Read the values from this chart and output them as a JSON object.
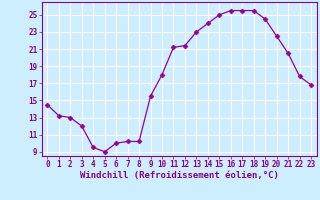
{
  "x": [
    0,
    1,
    2,
    3,
    4,
    5,
    6,
    7,
    8,
    9,
    10,
    11,
    12,
    13,
    14,
    15,
    16,
    17,
    18,
    19,
    20,
    21,
    22,
    23
  ],
  "y": [
    14.5,
    13.2,
    13.0,
    12.0,
    9.5,
    9.0,
    10.0,
    10.2,
    10.2,
    15.5,
    18.0,
    21.2,
    21.4,
    23.0,
    24.0,
    25.0,
    25.5,
    25.5,
    25.5,
    24.5,
    22.5,
    20.5,
    17.8,
    16.8
  ],
  "line_color": "#990099",
  "marker": "D",
  "marker_size": 2.5,
  "xlabel": "Windchill (Refroidissement éolien,°C)",
  "xlabel_fontsize": 6.5,
  "bg_color": "#cceeff",
  "grid_color": "#ffffff",
  "tick_color": "#880088",
  "xlim": [
    -0.5,
    23.5
  ],
  "ylim": [
    8.5,
    26.5
  ],
  "yticks": [
    9,
    11,
    13,
    15,
    17,
    19,
    21,
    23,
    25
  ],
  "xticks": [
    0,
    1,
    2,
    3,
    4,
    5,
    6,
    7,
    8,
    9,
    10,
    11,
    12,
    13,
    14,
    15,
    16,
    17,
    18,
    19,
    20,
    21,
    22,
    23
  ],
  "tick_labelsize": 5.5
}
